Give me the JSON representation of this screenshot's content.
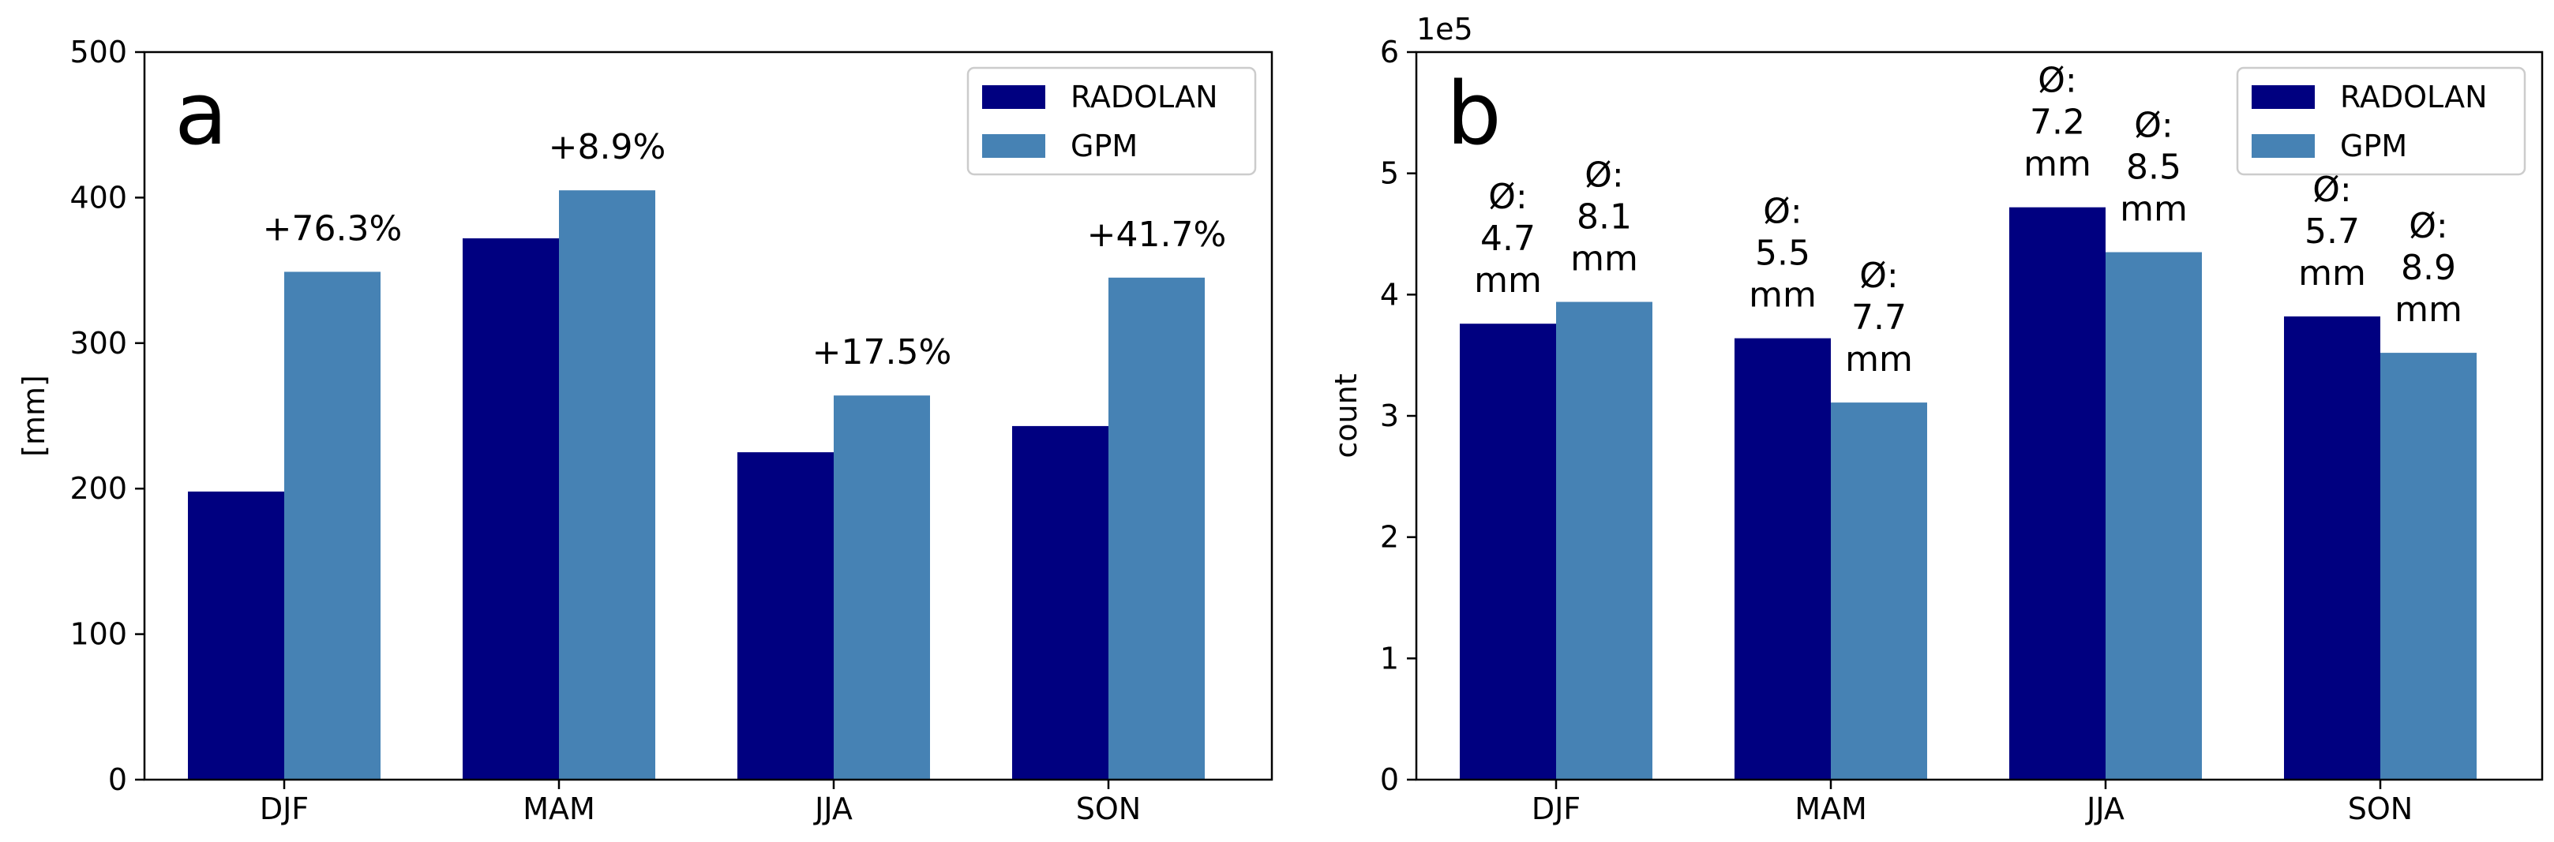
{
  "colors": {
    "radolan": "#000080",
    "gpm": "#4682b4"
  },
  "chart_data": [
    {
      "type": "bar",
      "panel_label": "a",
      "categories": [
        "DJF",
        "MAM",
        "JJA",
        "SON"
      ],
      "series": [
        {
          "name": "RADOLAN",
          "values": [
            198,
            372,
            225,
            243
          ]
        },
        {
          "name": "GPM",
          "values": [
            349,
            405,
            264,
            345
          ]
        }
      ],
      "annotations": [
        "+76.3%",
        "+8.9%",
        "+17.5%",
        "+41.7%"
      ],
      "xlabel": "",
      "ylabel": "[mm]",
      "ylim": [
        0,
        500
      ],
      "yticks": [
        "0",
        "100",
        "200",
        "300",
        "400",
        "500"
      ],
      "legend": "top-right"
    },
    {
      "type": "bar",
      "panel_label": "b",
      "categories": [
        "DJF",
        "MAM",
        "JJA",
        "SON"
      ],
      "series": [
        {
          "name": "RADOLAN",
          "values": [
            3.76,
            3.64,
            4.72,
            3.82
          ]
        },
        {
          "name": "GPM",
          "values": [
            3.94,
            3.11,
            4.35,
            3.52
          ]
        }
      ],
      "annotations": [
        [
          [
            "Ø:",
            "4.7",
            "mm"
          ],
          [
            "Ø:",
            "8.1",
            "mm"
          ]
        ],
        [
          [
            "Ø:",
            "5.5",
            "mm"
          ],
          [
            "Ø:",
            "7.7",
            "mm"
          ]
        ],
        [
          [
            "Ø:",
            "7.2",
            "mm"
          ],
          [
            "Ø:",
            "8.5",
            "mm"
          ]
        ],
        [
          [
            "Ø:",
            "5.7",
            "mm"
          ],
          [
            "Ø:",
            "8.9",
            "mm"
          ]
        ]
      ],
      "xlabel": "",
      "ylabel": "count",
      "multiplier": "1e5",
      "ylim": [
        0,
        6
      ],
      "yticks": [
        "0",
        "1",
        "2",
        "3",
        "4",
        "5",
        "6"
      ],
      "legend": "top-right"
    }
  ]
}
